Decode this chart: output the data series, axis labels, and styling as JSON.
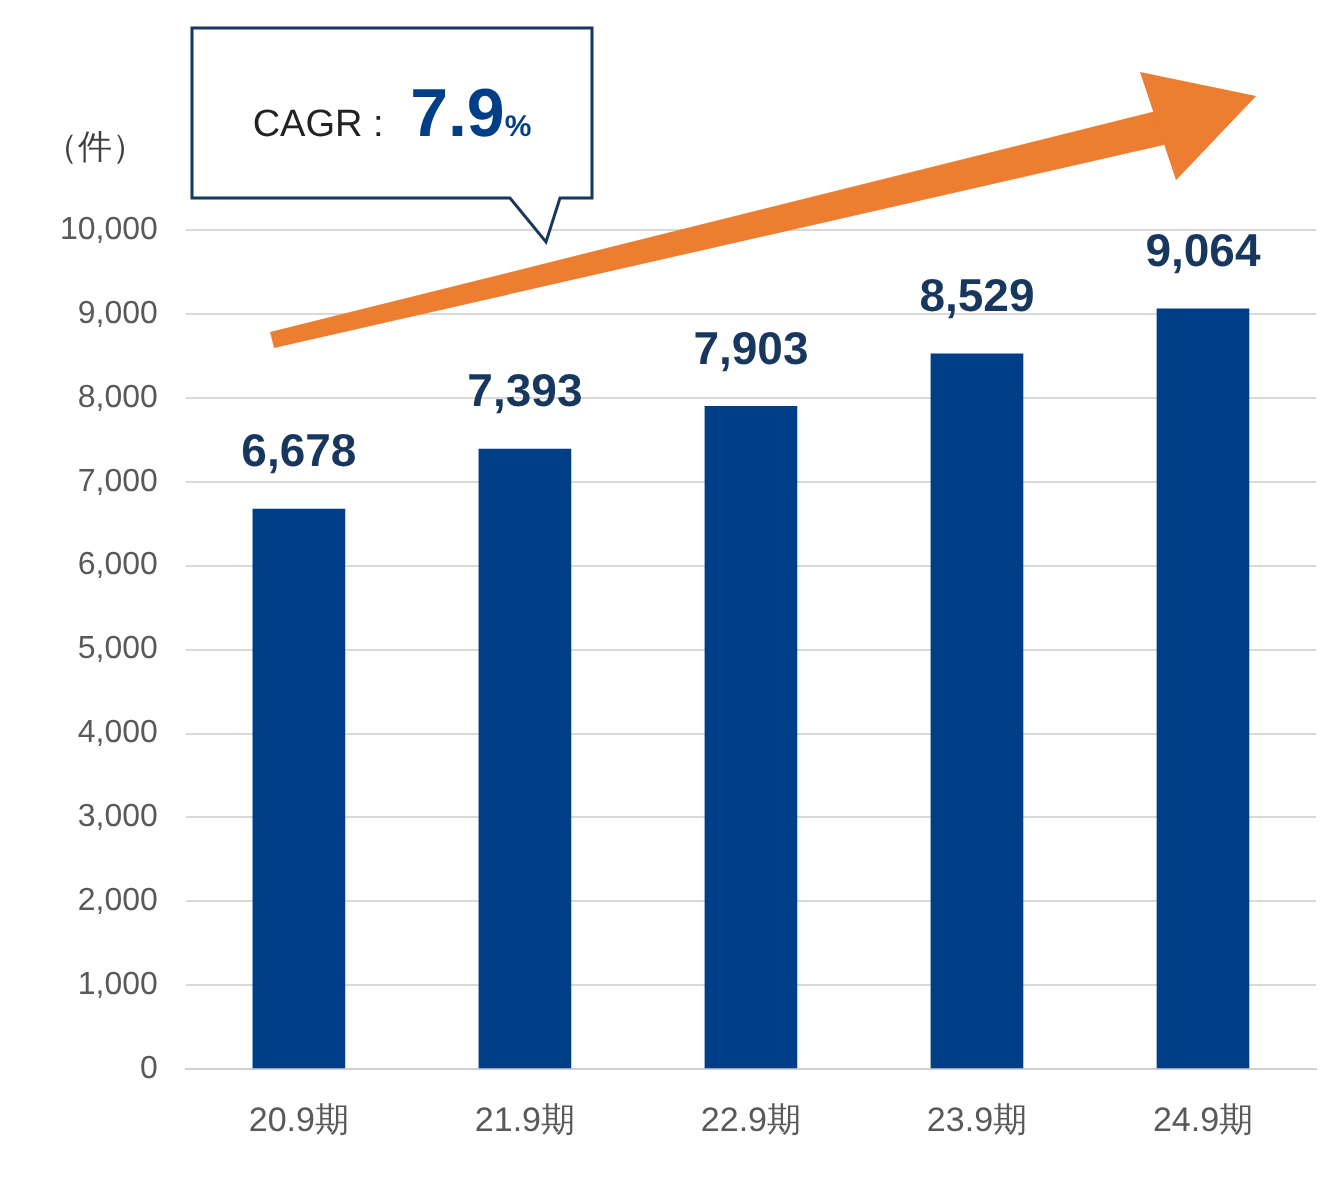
{
  "chart_data": {
    "type": "bar",
    "ylabel": "（件）",
    "categories": [
      "20.9期",
      "21.9期",
      "22.9期",
      "23.9期",
      "24.9期"
    ],
    "values": [
      6678,
      7393,
      7903,
      8529,
      9064
    ],
    "color": "#003f87",
    "ylim": [
      0,
      10000
    ],
    "yticks": [
      {
        "value": 0,
        "label": "0"
      },
      {
        "value": 1000,
        "label": "1,000"
      },
      {
        "value": 2000,
        "label": "2,000"
      },
      {
        "value": 3000,
        "label": "3,000"
      },
      {
        "value": 4000,
        "label": "4,000"
      },
      {
        "value": 5000,
        "label": "5,000"
      },
      {
        "value": 6000,
        "label": "6,000"
      },
      {
        "value": 7000,
        "label": "7,000"
      },
      {
        "value": 8000,
        "label": "8,000"
      },
      {
        "value": 9000,
        "label": "9,000"
      },
      {
        "value": 10000,
        "label": "10,000"
      }
    ],
    "value_labels": [
      "6,678",
      "7,393",
      "7,903",
      "8,529",
      "9,064"
    ],
    "grid": "y",
    "legend": false,
    "annotations": [
      "CAGR : 7.9%"
    ]
  }
}
